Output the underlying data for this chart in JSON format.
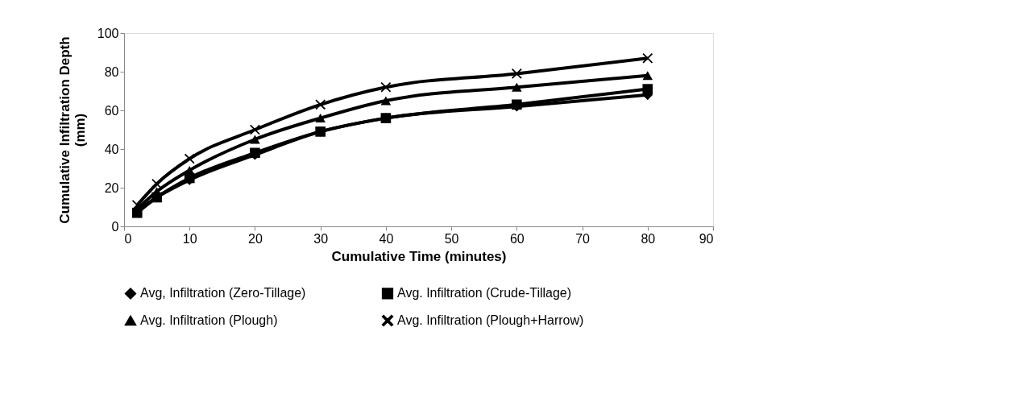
{
  "chart_data": {
    "type": "line",
    "xlabel": "Cumulative Time (minutes)",
    "ylabel": "Cumulative Infiltration Depth (mm)",
    "x": [
      2,
      5,
      10,
      20,
      30,
      40,
      60,
      80
    ],
    "xlim": [
      0,
      90
    ],
    "xticks": [
      0,
      10,
      20,
      30,
      40,
      50,
      60,
      70,
      80,
      90
    ],
    "ylim": [
      0,
      100
    ],
    "yticks": [
      0,
      20,
      40,
      60,
      80,
      100
    ],
    "grid": false,
    "legend": "bottom",
    "line_style": "solid",
    "series": [
      {
        "name": "Avg, Infiltration (Zero-Tillage)",
        "color": "#000000",
        "marker": "diamond",
        "values": [
          8,
          15,
          24,
          37,
          49,
          56,
          62,
          68
        ]
      },
      {
        "name": "Avg. Infiltration (Crude-Tillage)",
        "color": "#000000",
        "marker": "square",
        "values": [
          7,
          15,
          25,
          38,
          49,
          56,
          63,
          71
        ]
      },
      {
        "name": "Avg. Infiltration (Plough)",
        "color": "#000000",
        "marker": "triangle",
        "values": [
          9,
          18,
          29,
          45,
          56,
          65,
          72,
          78
        ]
      },
      {
        "name": "Avg. Infiltration (Plough+Harrow)",
        "color": "#000000",
        "marker": "cross",
        "values": [
          11,
          22,
          35,
          50,
          63,
          72,
          79,
          87
        ]
      }
    ]
  }
}
